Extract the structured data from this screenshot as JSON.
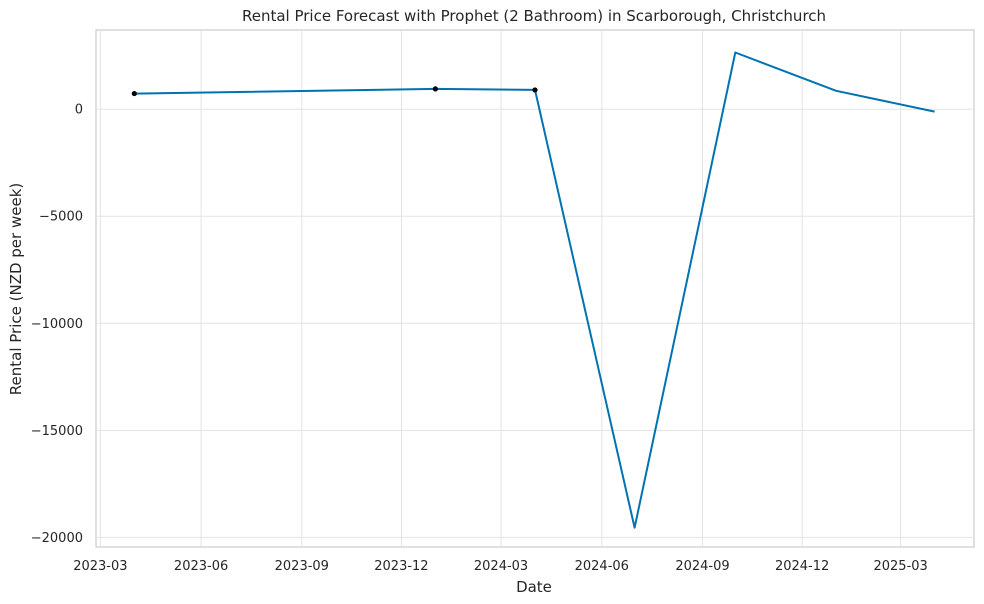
{
  "chart_data": {
    "type": "line",
    "title": "Rental Price Forecast with Prophet (2 Bathroom) in Scarborough, Christchurch",
    "xlabel": "Date",
    "ylabel": "Rental Price (NZD per week)",
    "x_ticks": [
      "2023-03",
      "2023-06",
      "2023-09",
      "2023-12",
      "2024-03",
      "2024-06",
      "2024-09",
      "2024-12",
      "2025-03"
    ],
    "y_ticks": [
      0,
      -5000,
      -10000,
      -15000,
      -20000
    ],
    "y_tick_labels": [
      "0",
      "−5000",
      "−10000",
      "−15000",
      "−20000"
    ],
    "xlim": [
      "2023-02-25",
      "2025-05-07"
    ],
    "ylim": [
      -20450,
      3700
    ],
    "grid": true,
    "series": [
      {
        "color": "#0072B2",
        "x": [
          "2023-04-01",
          "2024-01-01",
          "2024-04-01",
          "2024-07-01",
          "2024-10-01",
          "2025-01-01",
          "2025-04-01"
        ],
        "values": [
          730,
          950,
          900,
          -19550,
          2650,
          860,
          -110
        ]
      }
    ],
    "observed_points": {
      "color": "#000000",
      "x": [
        "2023-04-01",
        "2024-01-01",
        "2024-04-01"
      ],
      "values": [
        730,
        950,
        900
      ]
    }
  }
}
